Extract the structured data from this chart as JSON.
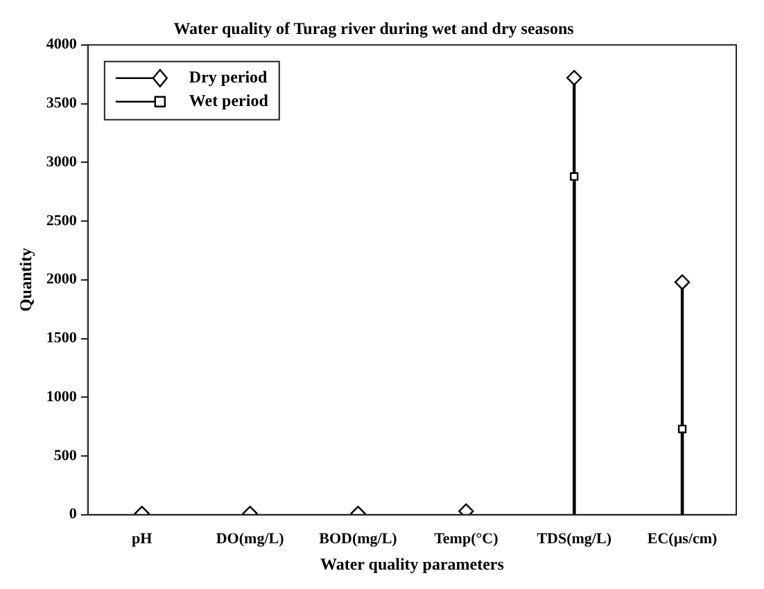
{
  "chart_data": {
    "type": "lollipop",
    "title": "Water quality of Turag river during wet and dry seasons",
    "xlabel": "Water quality parameters",
    "ylabel": "Quantity",
    "categories": [
      "pH",
      "DO(mg/L)",
      "BOD(mg/L)",
      "Temp(°C)",
      "TDS(mg/L)",
      "EC(µs/cm)"
    ],
    "series": [
      {
        "name": "Dry period",
        "color": "#000000",
        "marker": "diamond",
        "values": [
          10,
          10,
          10,
          30,
          3720,
          1980
        ]
      },
      {
        "name": "Wet period",
        "color": "#000000",
        "marker": "square",
        "values": [
          null,
          null,
          null,
          null,
          2880,
          730
        ]
      }
    ],
    "ylim": [
      0,
      4000
    ],
    "yticks": [
      0,
      500,
      1000,
      1500,
      2000,
      2500,
      3000,
      3500,
      4000
    ],
    "grid": false,
    "legend": "top left",
    "line_style": "solid"
  }
}
